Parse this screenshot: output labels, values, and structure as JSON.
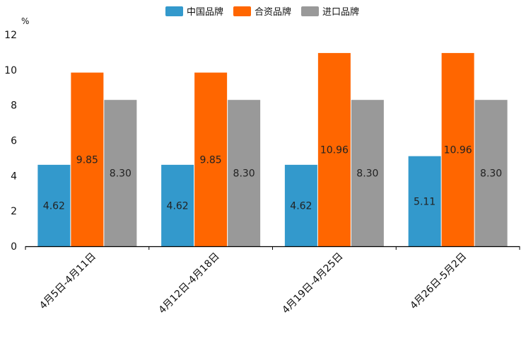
{
  "chart_data": {
    "type": "bar",
    "title": "",
    "unit_label": "%",
    "xlabel": "",
    "ylabel": "",
    "ylim": [
      0,
      12
    ],
    "yticks": [
      0,
      2,
      4,
      6,
      8,
      10,
      12
    ],
    "legend_position": "top-center",
    "grid": false,
    "categories": [
      "4月5日-4月11日",
      "4月12日-4月18日",
      "4月19日-4月25日",
      "4月26日-5月2日"
    ],
    "series": [
      {
        "name": "中国品牌",
        "color": "#3399cc",
        "values": [
          4.62,
          4.62,
          4.62,
          5.11
        ],
        "labels": [
          "4.62",
          "4.62",
          "4.62",
          "5.11"
        ]
      },
      {
        "name": "合资品牌",
        "color": "#ff6600",
        "values": [
          9.85,
          9.85,
          10.96,
          10.96
        ],
        "labels": [
          "9.85",
          "9.85",
          "10.96",
          "10.96"
        ]
      },
      {
        "name": "进口品牌",
        "color": "#999999",
        "values": [
          8.3,
          8.3,
          8.3,
          8.3
        ],
        "labels": [
          "8.30",
          "8.30",
          "8.30",
          "8.30"
        ]
      }
    ]
  }
}
